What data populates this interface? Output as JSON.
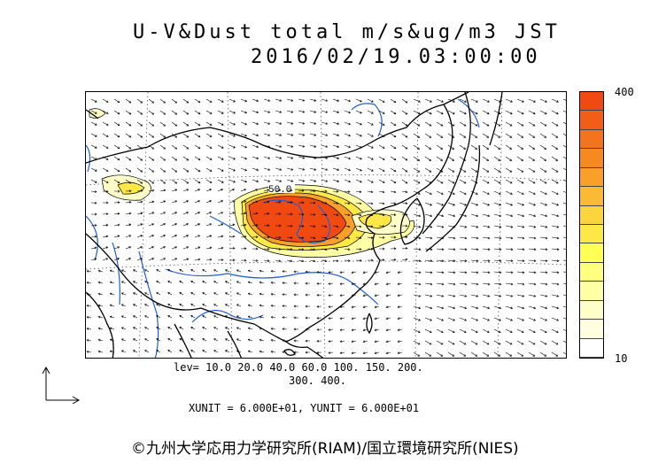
{
  "title": {
    "line1": "U-V&Dust total m/s&ug/m3 JST",
    "line2": "2016/02/19.03:00:00"
  },
  "map": {
    "contour_label": "50.0",
    "colors": {
      "coastline": "#000000",
      "rivers": "#1e5fd6",
      "graticule": "#555555",
      "wind_vectors": "#000000",
      "dust_core": "#f04a12"
    }
  },
  "colorbar": {
    "max_label": "400",
    "min_label": "10",
    "colors": [
      "#f04a12",
      "#f25e18",
      "#f4741c",
      "#f68a22",
      "#f8a02a",
      "#faba34",
      "#fcd43c",
      "#fee848",
      "#ffff55",
      "#ffff80",
      "#ffffa6",
      "#fffec8",
      "#fffee0",
      "#ffffff"
    ]
  },
  "levels": {
    "line1": "lev= 10.0 20.0 40.0 60.0 100. 150. 200.",
    "line2": "300. 400."
  },
  "units": "XUNIT = 6.000E+01, YUNIT = 6.000E+01",
  "copyright": "©九州大学応用力学研究所(RIAM)/国立環境研究所(NIES)"
}
